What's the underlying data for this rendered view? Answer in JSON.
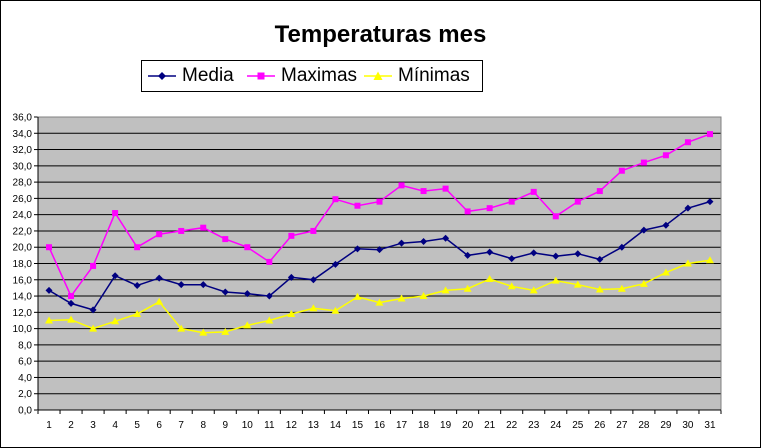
{
  "chart_data": {
    "type": "line",
    "title": "Temperaturas mes",
    "xlabel": "",
    "ylabel": "",
    "x": [
      1,
      2,
      3,
      4,
      5,
      6,
      7,
      8,
      9,
      10,
      11,
      12,
      13,
      14,
      15,
      16,
      17,
      18,
      19,
      20,
      21,
      22,
      23,
      24,
      25,
      26,
      27,
      28,
      29,
      30,
      31
    ],
    "ylim": [
      0,
      36
    ],
    "y_ticks": [
      "0,0",
      "2,0",
      "4,0",
      "6,0",
      "8,0",
      "10,0",
      "12,0",
      "14,0",
      "16,0",
      "18,0",
      "20,0",
      "22,0",
      "24,0",
      "26,0",
      "28,0",
      "30,0",
      "32,0",
      "34,0",
      "36,0"
    ],
    "grid": true,
    "plot_background": "#c0c0c0",
    "legend_position": "top",
    "series": [
      {
        "name": "Media",
        "color": "#000080",
        "marker": "diamond",
        "values": [
          14.7,
          13.1,
          12.3,
          16.5,
          15.3,
          16.2,
          15.4,
          15.4,
          14.5,
          14.3,
          14.0,
          16.3,
          16.0,
          17.9,
          19.8,
          19.7,
          20.5,
          20.7,
          21.1,
          19.0,
          19.4,
          18.6,
          19.3,
          18.9,
          19.2,
          18.5,
          20.0,
          22.1,
          22.7,
          24.8,
          25.6
        ]
      },
      {
        "name": "Maximas",
        "color": "#ff00ff",
        "marker": "square",
        "values": [
          20.0,
          14.0,
          17.7,
          24.2,
          20.0,
          21.6,
          22.0,
          22.4,
          21.0,
          20.0,
          18.2,
          21.4,
          22.0,
          25.9,
          25.1,
          25.6,
          27.6,
          26.9,
          27.2,
          24.4,
          24.8,
          25.6,
          26.8,
          23.8,
          25.6,
          26.9,
          29.4,
          30.4,
          31.3,
          32.9,
          33.9
        ]
      },
      {
        "name": "Mínimas",
        "color": "#ffff00",
        "marker": "triangle",
        "values": [
          11.0,
          11.1,
          10.0,
          10.9,
          11.8,
          13.3,
          10.0,
          9.5,
          9.6,
          10.4,
          11.0,
          11.8,
          12.5,
          12.2,
          13.9,
          13.2,
          13.7,
          14.0,
          14.7,
          14.9,
          16.1,
          15.2,
          14.7,
          15.9,
          15.4,
          14.8,
          14.9,
          15.5,
          16.9,
          18.0,
          18.4
        ]
      }
    ]
  }
}
